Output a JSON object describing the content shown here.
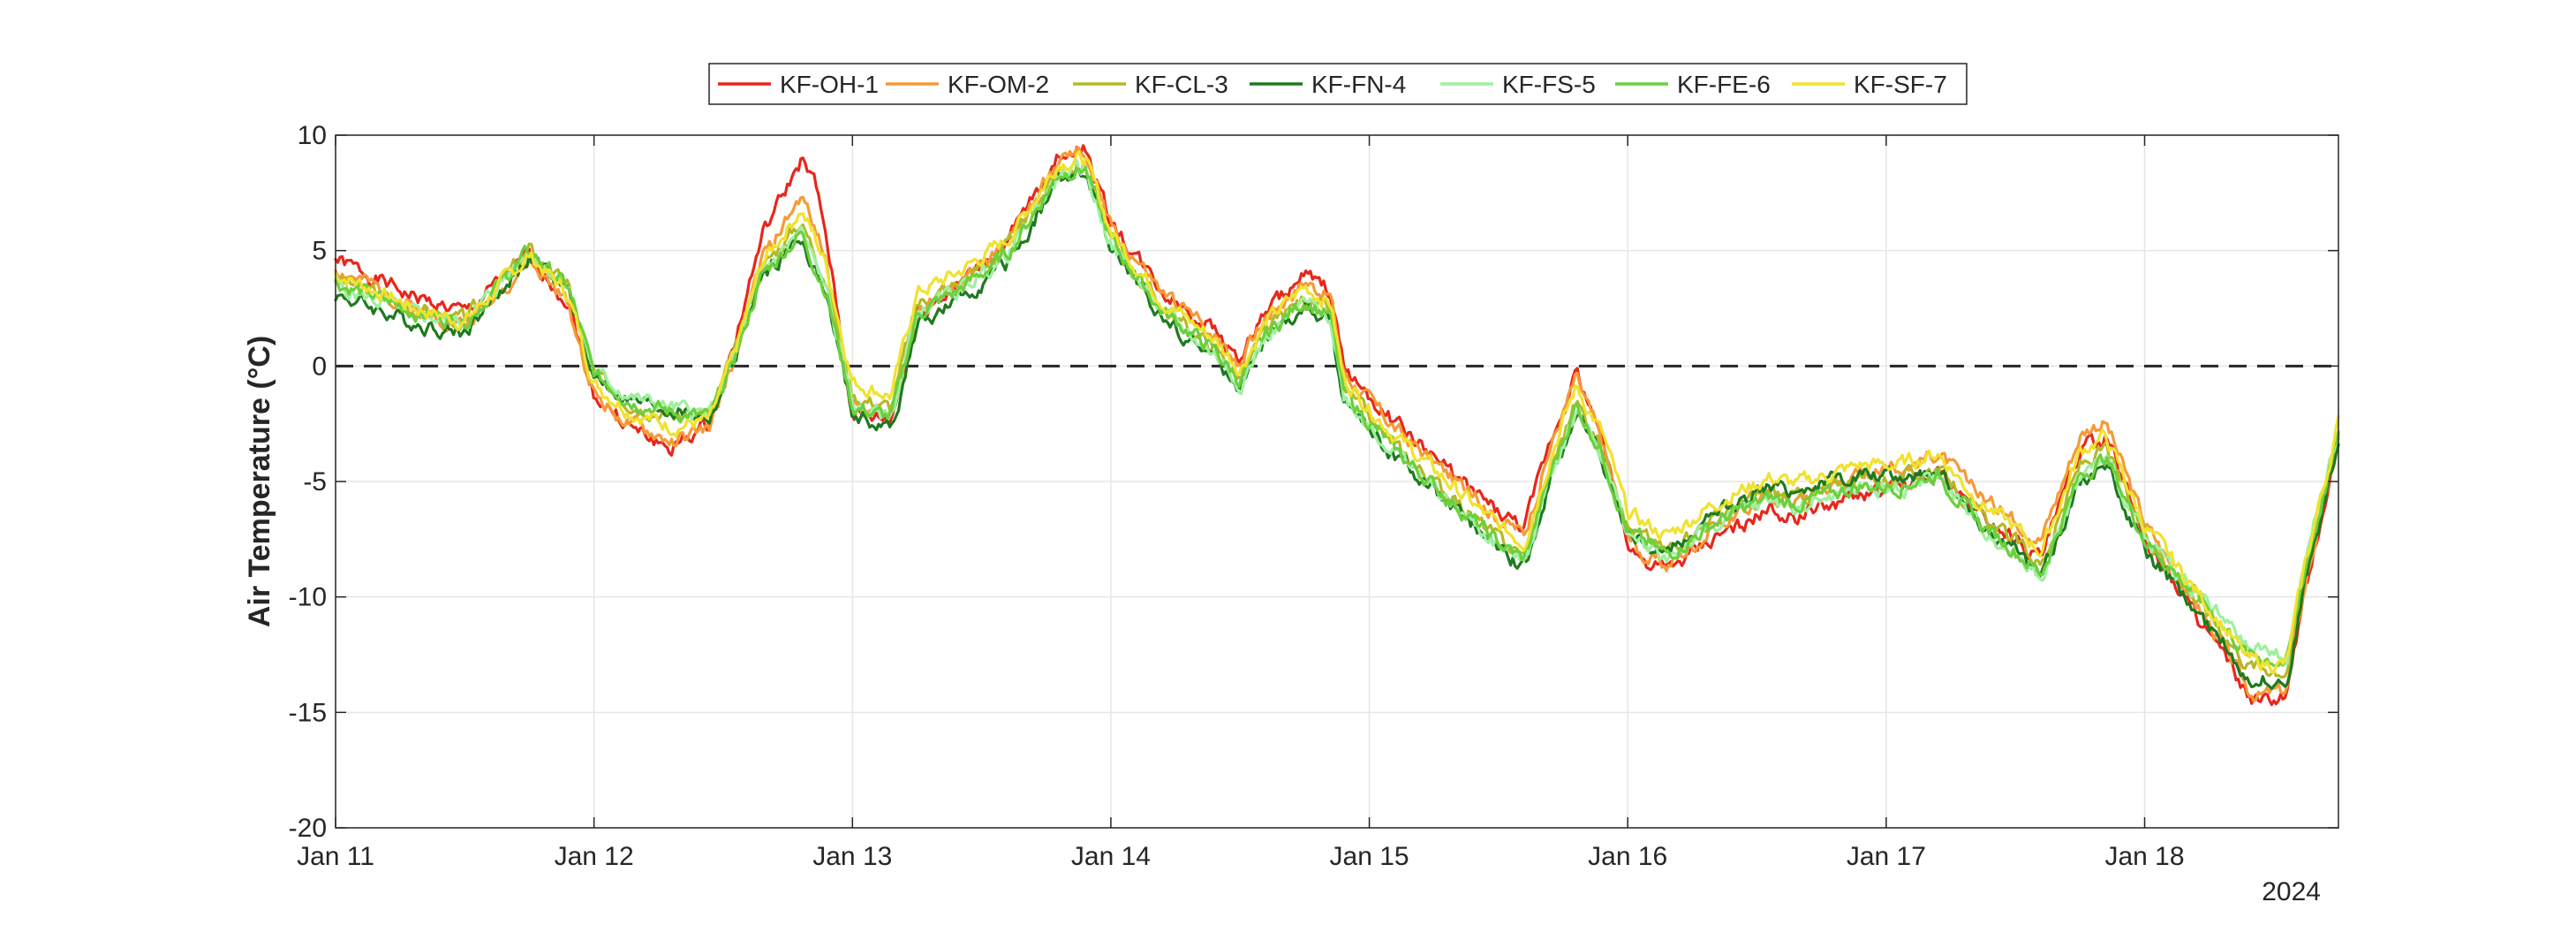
{
  "chart_data": {
    "type": "line",
    "title": "",
    "xlabel": "",
    "ylabel": "Air Temperature (°C)",
    "year_label": "2024",
    "ylim": [
      -20,
      10
    ],
    "xlim_days": [
      11,
      18.75
    ],
    "yticks": [
      10,
      5,
      0,
      -5,
      -10,
      -15,
      -20
    ],
    "xticks": [
      {
        "day": 11,
        "label": "Jan 11"
      },
      {
        "day": 12,
        "label": "Jan 12"
      },
      {
        "day": 13,
        "label": "Jan 13"
      },
      {
        "day": 14,
        "label": "Jan 14"
      },
      {
        "day": 15,
        "label": "Jan 15"
      },
      {
        "day": 16,
        "label": "Jan 16"
      },
      {
        "day": 17,
        "label": "Jan 17"
      },
      {
        "day": 18,
        "label": "Jan 18"
      }
    ],
    "grid": true,
    "reference_line": {
      "y": 0,
      "style": "dashed"
    },
    "legend_placement": "top-center",
    "x_unit": "day of January 2024",
    "base_series": {
      "x": [
        11.0,
        11.1,
        11.3,
        11.5,
        11.6,
        11.75,
        11.9,
        12.0,
        12.15,
        12.3,
        12.45,
        12.55,
        12.65,
        12.8,
        12.9,
        13.0,
        13.15,
        13.25,
        13.4,
        13.6,
        13.8,
        13.9,
        14.0,
        14.2,
        14.4,
        14.5,
        14.6,
        14.75,
        14.85,
        14.9,
        15.1,
        15.3,
        15.5,
        15.6,
        15.7,
        15.8,
        15.9,
        16.0,
        16.15,
        16.35,
        16.55,
        16.65,
        16.9,
        17.05,
        17.2,
        17.35,
        17.5,
        17.6,
        17.75,
        17.85,
        18.0,
        18.15,
        18.3,
        18.4,
        18.55,
        18.62,
        18.75
      ],
      "y": [
        3.6,
        3.2,
        2.3,
        1.8,
        3.0,
        4.8,
        3.2,
        -0.6,
        -1.8,
        -2.3,
        -2.4,
        0.5,
        4.0,
        6.0,
        3.5,
        -1.5,
        -2.0,
        2.5,
        3.4,
        5.0,
        8.5,
        8.7,
        5.5,
        2.5,
        0.8,
        -0.5,
        1.5,
        3.0,
        2.3,
        -1.0,
        -3.5,
        -5.5,
        -7.5,
        -8.2,
        -4.5,
        -1.5,
        -3.5,
        -7.0,
        -8.0,
        -6.5,
        -5.5,
        -5.8,
        -5.0,
        -5.0,
        -4.5,
        -6.5,
        -7.8,
        -8.8,
        -4.5,
        -3.8,
        -7.5,
        -9.5,
        -11.5,
        -13.0,
        -13.2,
        -9.0,
        -3.0
      ]
    },
    "series": [
      {
        "name": "KF-OH-1",
        "color": "#e8261c",
        "offsets": [
          {
            "x": 11.0,
            "d": 1.0
          },
          {
            "x": 11.5,
            "d": 0.5
          },
          {
            "x": 12.3,
            "d": -1.3
          },
          {
            "x": 12.85,
            "d": 3.3
          },
          {
            "x": 13.0,
            "d": -0.6
          },
          {
            "x": 13.9,
            "d": 0.8
          },
          {
            "x": 14.1,
            "d": 0.7
          },
          {
            "x": 15.8,
            "d": 1.2
          },
          {
            "x": 16.05,
            "d": -1.0
          },
          {
            "x": 16.9,
            "d": -0.6
          },
          {
            "x": 17.8,
            "d": 0.9
          },
          {
            "x": 18.45,
            "d": -1.6
          },
          {
            "x": 18.75,
            "d": -0.3
          }
        ],
        "seed": 1
      },
      {
        "name": "KF-OM-2",
        "color": "#f59a38",
        "offsets": [
          {
            "x": 11.0,
            "d": 0.6
          },
          {
            "x": 12.3,
            "d": -1.0
          },
          {
            "x": 12.85,
            "d": 1.5
          },
          {
            "x": 13.0,
            "d": -0.3
          },
          {
            "x": 13.9,
            "d": 0.5
          },
          {
            "x": 15.8,
            "d": 1.0
          },
          {
            "x": 16.05,
            "d": -0.8
          },
          {
            "x": 17.8,
            "d": 1.6
          },
          {
            "x": 18.45,
            "d": -1.2
          },
          {
            "x": 18.75,
            "d": 0.0
          }
        ],
        "seed": 2
      },
      {
        "name": "KF-CL-3",
        "color": "#b5b828",
        "offsets": [
          {
            "x": 11.0,
            "d": 0.2
          },
          {
            "x": 12.3,
            "d": 0.2
          },
          {
            "x": 12.85,
            "d": 0.3
          },
          {
            "x": 13.9,
            "d": 0.0
          },
          {
            "x": 15.8,
            "d": 0.0
          },
          {
            "x": 17.8,
            "d": 0.2
          },
          {
            "x": 18.75,
            "d": 0.0
          }
        ],
        "seed": 3
      },
      {
        "name": "KF-FN-4",
        "color": "#1f7a1f",
        "offsets": [
          {
            "x": 11.0,
            "d": -0.5
          },
          {
            "x": 11.4,
            "d": -0.4
          },
          {
            "x": 12.3,
            "d": 0.4
          },
          {
            "x": 12.85,
            "d": -0.5
          },
          {
            "x": 13.2,
            "d": -0.8
          },
          {
            "x": 13.9,
            "d": -0.4
          },
          {
            "x": 15.8,
            "d": -0.5
          },
          {
            "x": 16.7,
            "d": 0.5
          },
          {
            "x": 17.8,
            "d": -0.5
          },
          {
            "x": 18.75,
            "d": -0.4
          }
        ],
        "seed": 4
      },
      {
        "name": "KF-FS-5",
        "color": "#9ef09e",
        "offsets": [
          {
            "x": 11.0,
            "d": -0.2
          },
          {
            "x": 12.3,
            "d": 0.5
          },
          {
            "x": 12.85,
            "d": -0.2
          },
          {
            "x": 13.9,
            "d": -0.2
          },
          {
            "x": 15.8,
            "d": -0.3
          },
          {
            "x": 17.8,
            "d": -0.3
          },
          {
            "x": 18.45,
            "d": 0.8
          },
          {
            "x": 18.75,
            "d": 0.2
          }
        ],
        "seed": 5
      },
      {
        "name": "KF-FE-6",
        "color": "#6ccf3c",
        "offsets": [
          {
            "x": 11.0,
            "d": 0.0
          },
          {
            "x": 12.3,
            "d": 0.3
          },
          {
            "x": 12.85,
            "d": -0.3
          },
          {
            "x": 13.9,
            "d": -0.1
          },
          {
            "x": 15.8,
            "d": -0.2
          },
          {
            "x": 17.8,
            "d": -0.2
          },
          {
            "x": 18.45,
            "d": 0.5
          },
          {
            "x": 18.75,
            "d": 0.0
          }
        ],
        "seed": 6
      },
      {
        "name": "KF-SF-7",
        "color": "#f0e22e",
        "offsets": [
          {
            "x": 11.0,
            "d": 0.4
          },
          {
            "x": 12.3,
            "d": -0.3
          },
          {
            "x": 12.85,
            "d": 0.9
          },
          {
            "x": 13.9,
            "d": 0.3
          },
          {
            "x": 15.8,
            "d": 0.6
          },
          {
            "x": 17.8,
            "d": 0.8
          },
          {
            "x": 18.45,
            "d": 0.2
          },
          {
            "x": 18.75,
            "d": 0.5
          }
        ],
        "seed": 7
      }
    ]
  }
}
